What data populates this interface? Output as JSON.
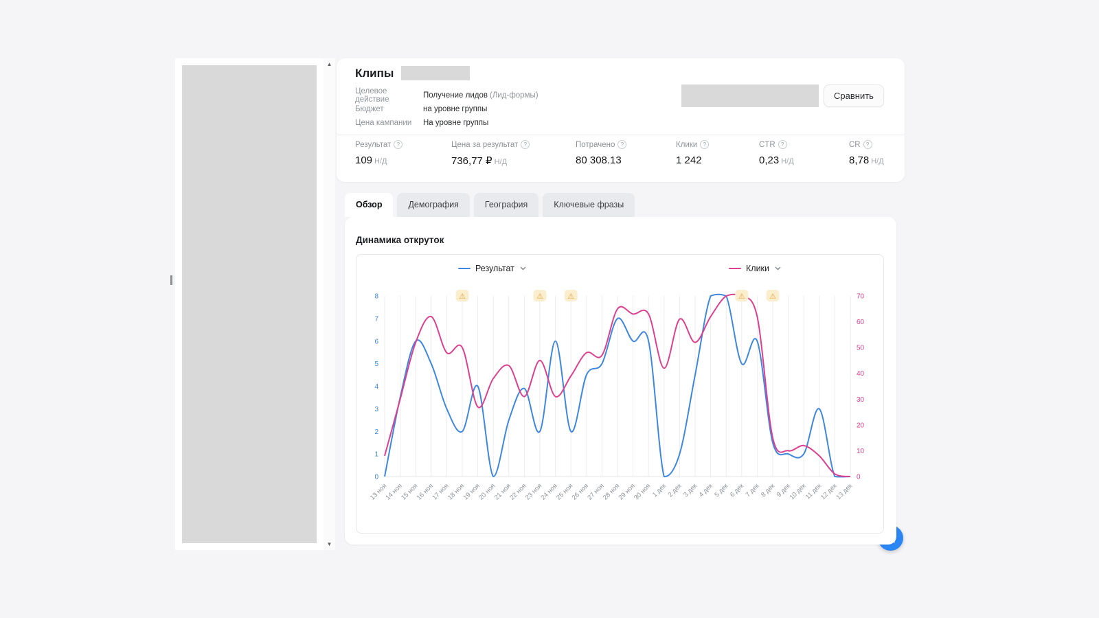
{
  "header": {
    "title": "Клипы",
    "info": [
      {
        "label": "Целевое действие",
        "value": "Получение лидов",
        "value_secondary": "(Лид-формы)"
      },
      {
        "label": "Бюджет",
        "value": "на уровне группы",
        "value_secondary": ""
      },
      {
        "label": "Цена кампании",
        "value": "На уровне группы",
        "value_secondary": ""
      }
    ],
    "compare_button": "Сравнить",
    "stats": [
      {
        "label": "Результат",
        "value": "109",
        "suffix": "Н/Д"
      },
      {
        "label": "Цена за результат",
        "value": "736,77 ₽",
        "suffix": "Н/Д"
      },
      {
        "label": "Потрачено",
        "value": "80 308.13",
        "suffix": ""
      },
      {
        "label": "Клики",
        "value": "1 242",
        "suffix": ""
      },
      {
        "label": "CTR",
        "value": "0,23",
        "suffix": "Н/Д"
      },
      {
        "label": "CR",
        "value": "8,78",
        "suffix": "Н/Д"
      }
    ]
  },
  "tabs": [
    {
      "id": "obzor",
      "label": "Обзор",
      "active": true
    },
    {
      "id": "demografiya",
      "label": "Демография",
      "active": false
    },
    {
      "id": "geografiya",
      "label": "География",
      "active": false
    },
    {
      "id": "klyuchevye-frazy",
      "label": "Ключевые фразы",
      "active": false
    }
  ],
  "section_title": "Динамика откруток",
  "icons": {
    "scroll_up": "▲",
    "scroll_down": "▼",
    "warning": "⚠",
    "help": "?"
  },
  "colors": {
    "accent_blue": "#2a86f2",
    "line_blue": "#3d87e0",
    "line_pink": "#dd3f8f"
  },
  "chart_data": {
    "type": "line",
    "title": "Динамика откруток",
    "categories": [
      "13 ноя",
      "14 ноя",
      "15 ноя",
      "16 ноя",
      "17 ноя",
      "18 ноя",
      "19 ноя",
      "20 ноя",
      "21 ноя",
      "22 ноя",
      "23 ноя",
      "24 ноя",
      "25 ноя",
      "26 ноя",
      "27 ноя",
      "28 ноя",
      "29 ноя",
      "30 ноя",
      "1 дек",
      "2 дек",
      "3 дек",
      "4 дек",
      "5 дек",
      "6 дек",
      "7 дек",
      "8 дек",
      "9 дек",
      "10 дек",
      "11 дек",
      "12 дек",
      "13 дек"
    ],
    "series": [
      {
        "name": "Результат",
        "color": "#3d87e0",
        "axis": "left",
        "values": [
          0,
          3.5,
          6,
          5,
          3,
          2,
          4,
          0,
          2.5,
          3.9,
          2,
          6,
          2,
          4.5,
          5,
          7,
          6,
          6,
          0,
          1,
          4.5,
          8,
          8,
          5,
          6,
          1.5,
          1,
          1,
          3,
          0,
          0
        ]
      },
      {
        "name": "Клики",
        "color": "#dd3f8f",
        "axis": "right",
        "values": [
          8,
          30,
          52,
          62,
          48,
          50,
          27,
          38,
          43,
          31,
          45,
          31,
          39,
          48,
          47,
          65,
          63,
          63,
          42,
          61,
          52,
          62,
          70,
          70,
          62,
          15,
          10,
          12,
          8,
          1,
          0
        ]
      }
    ],
    "left_axis": {
      "min": 0,
      "max": 8,
      "ticks": [
        0,
        1,
        2,
        3,
        4,
        5,
        6,
        7,
        8
      ],
      "color": "#3d87e0"
    },
    "right_axis": {
      "min": 0,
      "max": 70,
      "ticks": [
        0,
        10,
        20,
        30,
        40,
        50,
        60,
        70
      ],
      "color": "#dd3f8f"
    },
    "warnings": [
      "18 ноя",
      "23 ноя",
      "25 ноя",
      "6 дек",
      "8 дек"
    ],
    "grid": "vertical",
    "legend_position": "top"
  }
}
